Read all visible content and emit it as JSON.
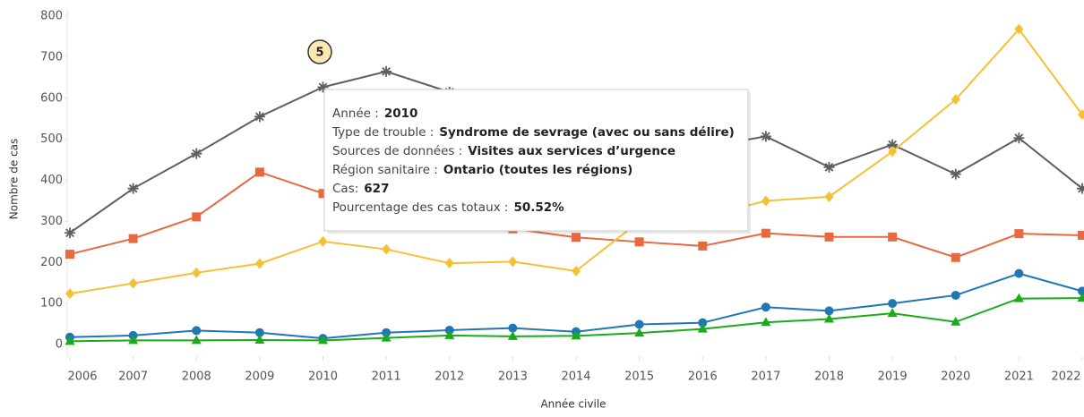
{
  "chart_data": {
    "type": "line",
    "x_label": "Année civile",
    "y_label": "Nombre de cas",
    "x": [
      2006,
      2007,
      2008,
      2009,
      2010,
      2011,
      2012,
      2013,
      2014,
      2015,
      2016,
      2017,
      2018,
      2019,
      2020,
      2021,
      2022
    ],
    "xlim": [
      2006,
      2022
    ],
    "xticks": [
      2006,
      2007,
      2008,
      2009,
      2010,
      2011,
      2012,
      2013,
      2014,
      2015,
      2016,
      2017,
      2018,
      2019,
      2020,
      2021,
      2022
    ],
    "ylim": [
      0,
      800
    ],
    "yticks": [
      0,
      100,
      200,
      300,
      400,
      500,
      600,
      700,
      800
    ],
    "grid": false,
    "series": [
      {
        "color": "#5f5f5f",
        "marker": "asterisk",
        "values": [
          272,
          380,
          465,
          555,
          627,
          665,
          615,
          560,
          520,
          500,
          480,
          507,
          432,
          487,
          415,
          503,
          380
        ]
      },
      {
        "color": "#e8683f",
        "marker": "square",
        "values": [
          220,
          258,
          311,
          420,
          368,
          350,
          330,
          282,
          261,
          250,
          240,
          271,
          262,
          262,
          212,
          270,
          266
        ]
      },
      {
        "color": "#f6c035",
        "marker": "diamond",
        "values": [
          124,
          149,
          175,
          197,
          251,
          232,
          198,
          202,
          179,
          300,
          310,
          350,
          360,
          470,
          597,
          768,
          560
        ]
      },
      {
        "color": "#1f77b4",
        "marker": "circle",
        "values": [
          18,
          22,
          34,
          29,
          15,
          29,
          35,
          40,
          31,
          49,
          53,
          91,
          82,
          100,
          120,
          173,
          130
        ]
      },
      {
        "color": "#1aab1a",
        "marker": "triangle",
        "values": [
          8,
          10,
          10,
          11,
          10,
          16,
          22,
          20,
          21,
          28,
          38,
          54,
          62,
          76,
          55,
          112,
          113
        ]
      }
    ],
    "annotation": "5",
    "tooltip": [
      {
        "label": "Année :",
        "value": "2010"
      },
      {
        "label": "Type de trouble :",
        "value": "Syndrome de sevrage (avec ou sans délire)"
      },
      {
        "label": "Sources de données :",
        "value": "Visites aux services d’urgence"
      },
      {
        "label": "Région sanitaire :",
        "value": "Ontario (toutes les régions)"
      },
      {
        "label": "Cas:",
        "value": "627"
      },
      {
        "label": "Pourcentage des cas totaux :",
        "value": "50.52%"
      }
    ]
  }
}
